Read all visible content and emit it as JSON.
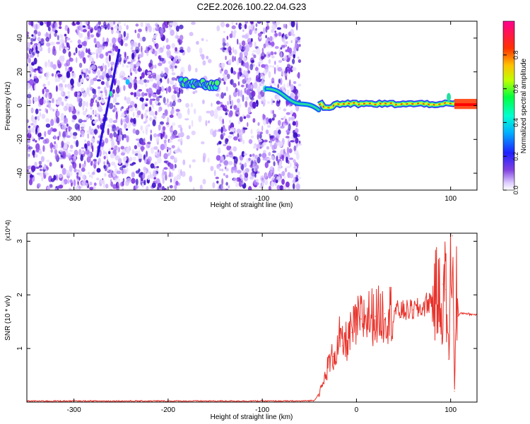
{
  "title": "C2E2.2026.100.22.04.G23",
  "colors": {
    "snr_line": "#e8322a",
    "ridge_core": "#ff2a00",
    "ridge_mid": "#22e0a0",
    "ridge_edge": "#1060ff"
  },
  "chart_data": [
    {
      "type": "heatmap",
      "title": "C2E2.2026.100.22.04.G23",
      "xlabel": "Height of straight line (km)",
      "ylabel": "Frequency (Hz)",
      "xlim": [
        -350,
        128
      ],
      "ylim": [
        -50,
        50
      ],
      "xticks": [
        -300,
        -200,
        -100,
        0,
        100
      ],
      "yticks": [
        -40,
        -20,
        0,
        20,
        40
      ],
      "colorbar": {
        "label": "Normalized spectral amplitude",
        "range": [
          0,
          1
        ],
        "ticks": [
          0.0,
          0.2,
          0.4,
          0.6,
          0.8
        ],
        "tick_labels": [
          "0.0",
          "0.2",
          "0.4",
          "0.6",
          "0.8"
        ],
        "colormap": [
          "#ffffff",
          "#c9a8ff",
          "#7a3ddc",
          "#2020ff",
          "#00d8ff",
          "#00ff60",
          "#f0ff00",
          "#ff8000",
          "#ff0000",
          "#ff0090"
        ]
      },
      "noise_region_x": [
        -350,
        -60
      ],
      "blank_band_x": [
        -185,
        -148
      ],
      "features": [
        {
          "name": "diagonal-streak",
          "x": [
            -275,
            -252
          ],
          "y": [
            -30,
            33
          ]
        },
        {
          "name": "blob-ridge",
          "x": [
            -186,
            -148
          ],
          "y": [
            14,
            12
          ]
        },
        {
          "name": "descending-ridge",
          "x": [
            -95,
            -40
          ],
          "y": [
            10,
            -3
          ]
        },
        {
          "name": "flat-ridge",
          "x": [
            -40,
            128
          ],
          "y": [
            1,
            1
          ]
        }
      ]
    },
    {
      "type": "line",
      "xlabel": "Height of straight line (km)",
      "ylabel": "SNR (10 * v/v)",
      "y_multiplier": "(x10^4)",
      "xlim": [
        -350,
        128
      ],
      "ylim": [
        0,
        3.15
      ],
      "xticks": [
        -300,
        -200,
        -100,
        0,
        100
      ],
      "yticks": [
        1,
        2,
        3
      ],
      "series": [
        {
          "x": [
            -350,
            -300,
            -250,
            -200,
            -150,
            -100,
            -60,
            -45,
            -40,
            -35,
            -30,
            -25,
            -20,
            -18,
            -15,
            -10,
            -5,
            0,
            5,
            10,
            20,
            30,
            40,
            50,
            60,
            70,
            75,
            80,
            85,
            88,
            90,
            92,
            95,
            98,
            100,
            102,
            104,
            106,
            108,
            110,
            115,
            120,
            128
          ],
          "y": [
            0.02,
            0.02,
            0.02,
            0.02,
            0.02,
            0.02,
            0.02,
            0.03,
            0.15,
            0.35,
            0.7,
            0.85,
            1.0,
            1.2,
            1.05,
            1.15,
            1.3,
            1.45,
            1.55,
            1.6,
            1.6,
            1.65,
            1.7,
            1.7,
            1.72,
            1.75,
            1.85,
            1.9,
            2.0,
            1.95,
            1.5,
            2.2,
            2.1,
            0.8,
            2.5,
            3.1,
            0.2,
            2.2,
            1.6,
            1.65,
            1.66,
            1.64,
            1.63
          ]
        }
      ]
    }
  ]
}
